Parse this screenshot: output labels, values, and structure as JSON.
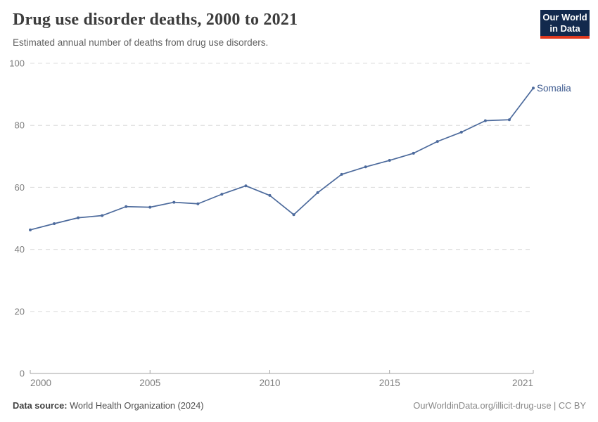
{
  "header": {
    "title": "Drug use disorder deaths, 2000 to 2021",
    "subtitle": "Estimated annual number of deaths from drug use disorders."
  },
  "logo": {
    "line1": "Our World",
    "line2": "in Data",
    "background": "#12294d",
    "accent": "#e0391e"
  },
  "chart_data": {
    "type": "line",
    "title": "Drug use disorder deaths, 2000 to 2021",
    "xlabel": "",
    "ylabel": "",
    "x": [
      2000,
      2001,
      2002,
      2003,
      2004,
      2005,
      2006,
      2007,
      2008,
      2009,
      2010,
      2011,
      2012,
      2013,
      2014,
      2015,
      2016,
      2017,
      2018,
      2019,
      2020,
      2021
    ],
    "series": [
      {
        "name": "Somalia",
        "color": "#4c6a9c",
        "values": [
          46.3,
          48.3,
          50.2,
          50.9,
          53.8,
          53.6,
          55.2,
          54.7,
          57.8,
          60.5,
          57.4,
          51.2,
          58.3,
          64.2,
          66.6,
          68.7,
          71.0,
          74.8,
          77.8,
          81.5,
          81.8,
          92.0
        ]
      }
    ],
    "end_label": "Somalia",
    "end_label_color": "#3d5a8f",
    "xticks": [
      2000,
      2005,
      2010,
      2015,
      2021
    ],
    "yticks": [
      0,
      20,
      40,
      60,
      80,
      100
    ],
    "xlim": [
      2000,
      2021
    ],
    "ylim": [
      0,
      100
    ],
    "grid": "horizontal-dashed",
    "legend_position": "end-of-line",
    "marker": "point"
  },
  "colors": {
    "gridline": "#dcdcdc",
    "axis": "#a3a3a3",
    "tick_label": "#7e7e7e",
    "line": "#4c6a9c"
  },
  "footer": {
    "source_label": "Data source:",
    "source_value": " World Health Organization (2024)",
    "credit": "OurWorldinData.org/illicit-drug-use | CC BY"
  }
}
